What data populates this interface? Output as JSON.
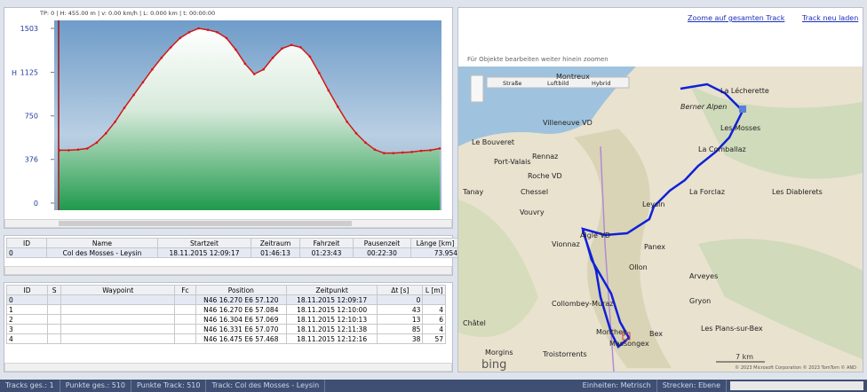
{
  "profile": {
    "header": "TP: 0 | H: 455.00 m | v: 0.00 km/h | L: 0.000 km | t: 00:00:00",
    "y_label": "H",
    "ylim": [
      0,
      1503
    ],
    "yticks": [
      0,
      376,
      750,
      1125,
      1503
    ],
    "values": [
      455,
      455,
      460,
      470,
      520,
      600,
      700,
      820,
      930,
      1040,
      1150,
      1250,
      1340,
      1420,
      1470,
      1503,
      1490,
      1470,
      1420,
      1320,
      1200,
      1110,
      1150,
      1250,
      1330,
      1360,
      1340,
      1260,
      1120,
      970,
      830,
      700,
      600,
      520,
      460,
      430,
      430,
      435,
      440,
      450,
      455,
      470
    ]
  },
  "tracks_table": {
    "columns": [
      "ID",
      "Name",
      "Startzeit",
      "Zeitraum",
      "Fahrzeit",
      "Pausenzeit",
      "Länge [km]"
    ],
    "rows": [
      [
        "0",
        "Col des Mosses - Leysin",
        "18.11.2015 12:09:17",
        "01:46:13",
        "01:23:43",
        "00:22:30",
        "73.954"
      ]
    ]
  },
  "waypoints_table": {
    "columns": [
      "ID",
      "S",
      "Waypoint",
      "Fc",
      "Position",
      "Zeitpunkt",
      "Δt [s]",
      "L [m]"
    ],
    "rows": [
      [
        "0",
        "",
        "",
        "",
        "N46 16.270 E6 57.120",
        "18.11.2015 12:09:17",
        "0",
        ""
      ],
      [
        "1",
        "",
        "",
        "",
        "N46 16.270 E6 57.084",
        "18.11.2015 12:10:00",
        "43",
        "4"
      ],
      [
        "2",
        "",
        "",
        "",
        "N46 16.304 E6 57.069",
        "18.11.2015 12:10:13",
        "13",
        "6"
      ],
      [
        "3",
        "",
        "",
        "",
        "N46 16.331 E6 57.070",
        "18.11.2015 12:11:38",
        "85",
        "4"
      ],
      [
        "4",
        "",
        "",
        "",
        "N46 16.475 E6 57.468",
        "18.11.2015 12:12:16",
        "38",
        "57"
      ]
    ]
  },
  "map": {
    "links": [
      "Zoome auf gesamten Track",
      "Track neu laden"
    ],
    "hint": "Für Objekte bearbeiten weiter hinein zoomen",
    "buttons": [
      "Straße",
      "Luftbild",
      "Hybrid"
    ],
    "labels": [
      "Montreux",
      "La Lécherette",
      "Berner Alpen",
      "Villeneuve VD",
      "Les Mosses",
      "Le Bouveret",
      "Rennaz",
      "La Comballaz",
      "Port-Valais",
      "Roche VD",
      "Tanay",
      "Chessel",
      "Leysin",
      "La Forclaz",
      "Les Diablerets",
      "Vouvry",
      "Aigle VD",
      "Panex",
      "Vionnaz",
      "Ollon",
      "Arveyes",
      "Collombey-Muraz",
      "Gryon",
      "Châtel",
      "Monthey",
      "Bex",
      "Les Plans-sur-Bex",
      "Morgins",
      "Massongex",
      "Troistorrents"
    ],
    "scale": "7 km",
    "logo": "bing",
    "copyright": "© 2023 Microsoft Corporation  © 2023 TomTom  © AND"
  },
  "status_bar": {
    "left": [
      "Tracks ges.: 1",
      "Punkte ges.: 510",
      "Punkte Track: 510",
      "Track: Col des Mosses - Leysin"
    ],
    "right": [
      "Einheiten: Metrisch",
      "Strecken: Ebene"
    ]
  }
}
